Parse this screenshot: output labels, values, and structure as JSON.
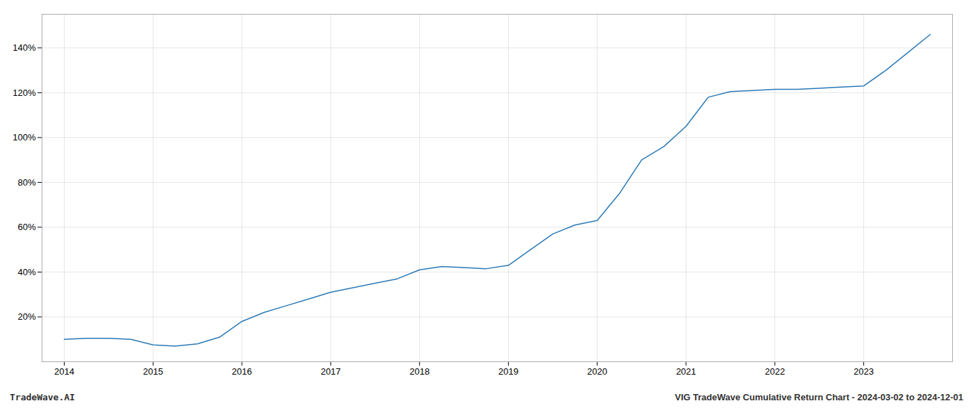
{
  "chart_data": {
    "type": "line",
    "title": "VIG TradeWave Cumulative Return Chart - 2024-03-02 to 2024-12-01",
    "annotations": [
      "TradeWave.AI"
    ],
    "x": [
      2014.0,
      2014.25,
      2014.5,
      2014.75,
      2015.0,
      2015.25,
      2015.5,
      2015.75,
      2016.0,
      2016.25,
      2016.5,
      2016.75,
      2017.0,
      2017.25,
      2017.5,
      2017.75,
      2018.0,
      2018.25,
      2018.5,
      2018.75,
      2019.0,
      2019.25,
      2019.5,
      2019.75,
      2020.0,
      2020.25,
      2020.5,
      2020.75,
      2021.0,
      2021.25,
      2021.5,
      2021.75,
      2022.0,
      2022.25,
      2022.5,
      2022.75,
      2023.0,
      2023.25,
      2023.5,
      2023.75
    ],
    "values": [
      10.0,
      10.5,
      10.5,
      10.0,
      7.5,
      7.0,
      8.0,
      11.0,
      18.0,
      22.0,
      25.0,
      28.0,
      31.0,
      33.0,
      35.0,
      37.0,
      41.0,
      42.5,
      42.0,
      41.5,
      43.0,
      50.0,
      57.0,
      61.0,
      63.0,
      75.0,
      90.0,
      96.0,
      105.0,
      118.0,
      120.5,
      121.0,
      121.5,
      121.5,
      122.0,
      122.5,
      123.0,
      130.0,
      138.0,
      146.0
    ],
    "color": "#2878b5",
    "xlim": [
      2013.75,
      2024.0
    ],
    "xticks": [
      2014,
      2015,
      2016,
      2017,
      2018,
      2019,
      2020,
      2021,
      2022,
      2023
    ],
    "ylim": [
      0,
      155
    ],
    "yticks": [
      {
        "value": 20,
        "label": "20%"
      },
      {
        "value": 40,
        "label": "40%"
      },
      {
        "value": 60,
        "label": "60%"
      },
      {
        "value": 80,
        "label": "80%"
      },
      {
        "value": 100,
        "label": "100%"
      },
      {
        "value": 120,
        "label": "120%"
      },
      {
        "value": 140,
        "label": "140%"
      }
    ],
    "grid": true
  }
}
